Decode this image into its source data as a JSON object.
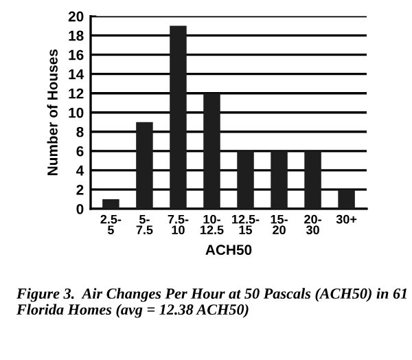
{
  "chart_data": {
    "type": "bar",
    "title": "Figure 3.  Air Changes Per Hour at 50 Pascals (ACH50) in 61 Florida Homes (avg = 12.38 ACH50)",
    "xlabel": "ACH50",
    "ylabel": "Number of Houses",
    "categories": [
      "2.5-\n5",
      "5-\n7.5",
      "7.5-\n10",
      "10-\n12.5",
      "12.5-\n15",
      "15-\n20",
      "20-\n30",
      "30+"
    ],
    "values": [
      1,
      9,
      19,
      12,
      6,
      6,
      6,
      2
    ],
    "color": "#1e1e1e",
    "ylim": [
      0,
      20
    ],
    "yticks": [
      0,
      2,
      4,
      6,
      8,
      10,
      12,
      14,
      16,
      18,
      20
    ],
    "grid": "y"
  }
}
